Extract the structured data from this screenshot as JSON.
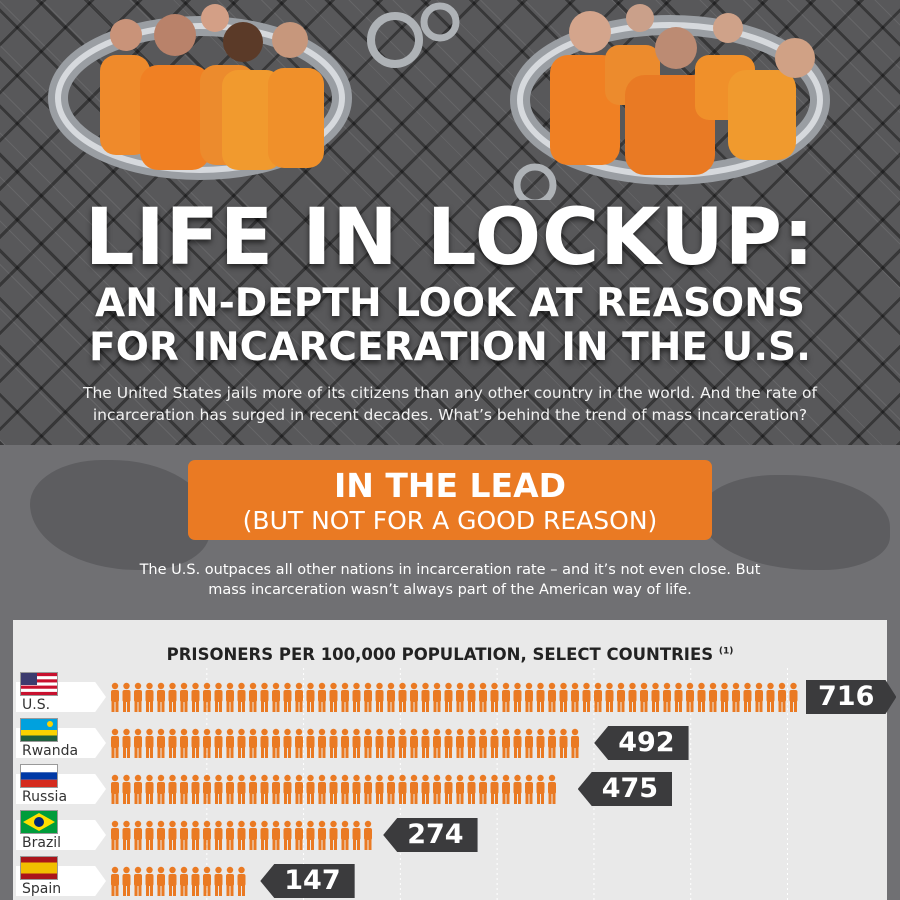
{
  "header": {
    "title": "LIFE IN LOCKUP:",
    "subtitle_line1": "AN IN-DEPTH LOOK AT REASONS",
    "subtitle_line2": "FOR INCARCERATION IN THE U.S.",
    "intro": "The United States jails more of its citizens than any other country in the world. And the rate of incarceration has surged in recent decades. What’s behind the trend of mass incarceration?"
  },
  "section": {
    "banner_title": "IN THE LEAD",
    "banner_subtitle": "(BUT NOT FOR A GOOD REASON)",
    "text": "The U.S. outpaces all other nations in incarceration rate – and it’s not even close. But mass incarceration wasn’t always part of the American way of life."
  },
  "chart_data": {
    "type": "bar",
    "title": "PRISONERS PER 100,000 POPULATION, SELECT COUNTRIES",
    "footnote": "(1)",
    "categories": [
      "U.S.",
      "Rwanda",
      "Russia",
      "Brazil",
      "Spain"
    ],
    "values": [
      716,
      492,
      475,
      274,
      147
    ],
    "orientation": "horizontal",
    "xlim": [
      0,
      720
    ],
    "grid": true,
    "bar_color": "#ea7a23"
  },
  "flags": [
    "us-flag-icon",
    "rwanda-flag-icon",
    "russia-flag-icon",
    "brazil-flag-icon",
    "spain-flag-icon"
  ],
  "colors": {
    "accent": "#ea7a23",
    "dark": "#3b3b3d",
    "panel": "#e9e9e9"
  }
}
